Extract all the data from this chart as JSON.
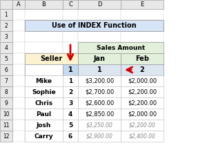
{
  "title": "Use of INDEX Function",
  "title_bg": "#d6e4f7",
  "col_header_bg": "#e2efda",
  "seller_header_bg": "#fdf2d0",
  "data_row_bg": "#dce6f1",
  "excel_header_bg": "#e8e8e8",
  "excel_header_border": "#c0c0c0",
  "grid_color": "#b8b8b8",
  "sellers": [
    "Mike",
    "Sophie",
    "Chris",
    "Paul",
    "Josh",
    "Carry"
  ],
  "nums": [
    "1",
    "2",
    "3",
    "4",
    "5",
    "6"
  ],
  "jan": [
    "$3,200.00",
    "$2,700.00",
    "$2,600.00",
    "$2,850.00",
    "$3,250.00",
    "$2,900.00"
  ],
  "feb": [
    "$2,000.00",
    "$2,200.00",
    "$2,200.00",
    "$2,000.00",
    "$2,200.00",
    "$2,400.00"
  ],
  "arrow_color": "#cc0000",
  "col_labels": [
    "A",
    "B",
    "C",
    "D",
    "E"
  ],
  "row_labels": [
    "1",
    "2",
    "3",
    "4",
    "5",
    "6",
    "7",
    "8",
    "9",
    "10",
    "11",
    "12"
  ]
}
